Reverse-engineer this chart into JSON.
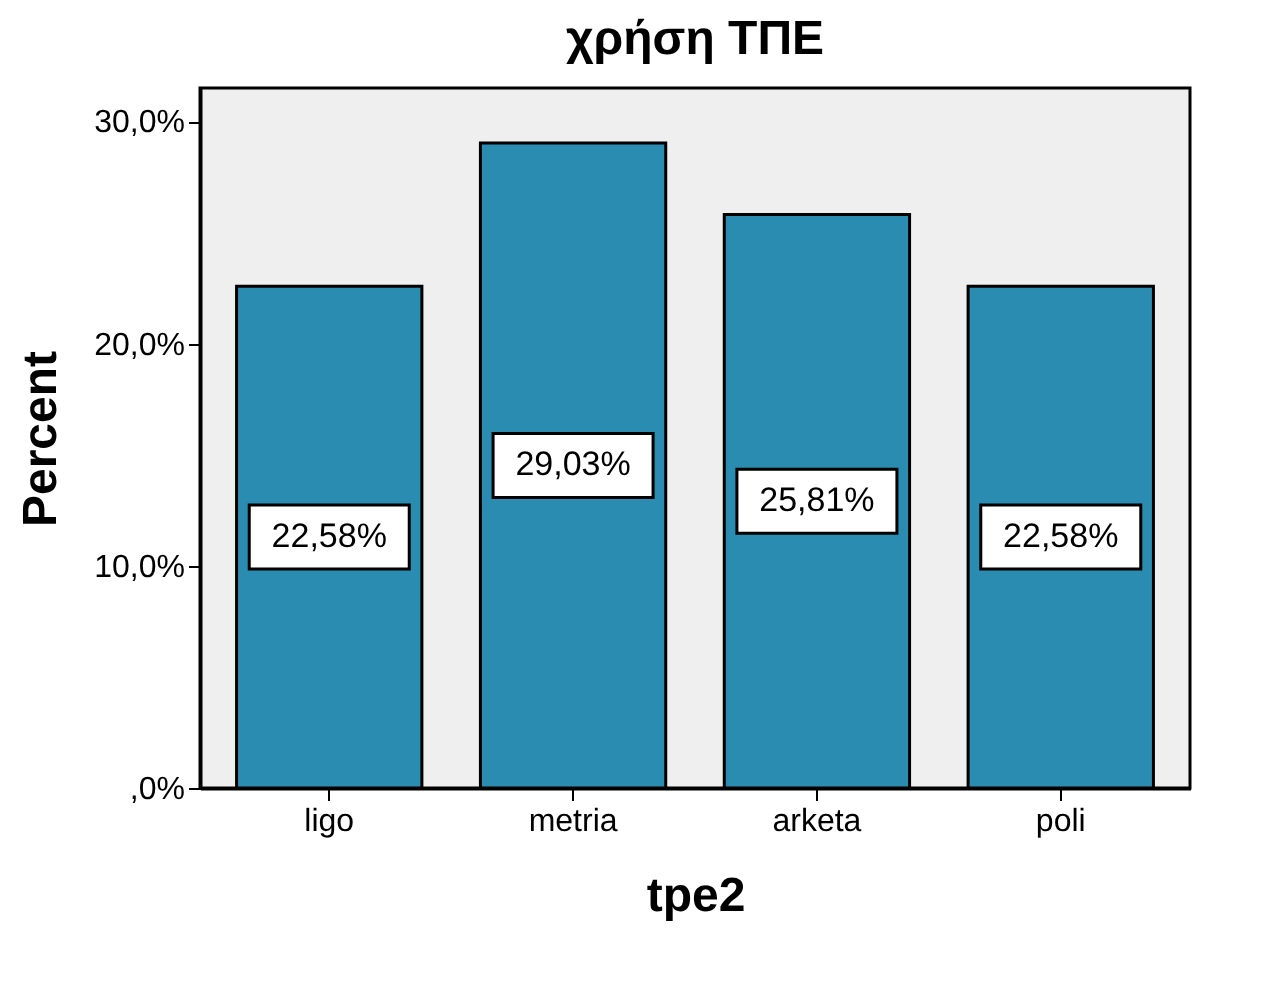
{
  "chart_data": {
    "type": "bar",
    "title": "χρήση ΤΠΕ",
    "xlabel": "tpe2",
    "ylabel": "Percent",
    "categories": [
      "ligo",
      "metria",
      "arketa",
      "poli"
    ],
    "values": [
      22.58,
      29.03,
      25.81,
      22.58
    ],
    "value_labels": [
      "22,58%",
      "29,03%",
      "25,81%",
      "22,58%"
    ],
    "color": "#2a8cb0",
    "ylim": [
      0,
      31.5
    ],
    "yticks": [
      {
        "value": 0,
        "label": ",0%"
      },
      {
        "value": 10,
        "label": "10,0%"
      },
      {
        "value": 20,
        "label": "20,0%"
      },
      {
        "value": 30,
        "label": "30,0%"
      }
    ],
    "grid": false
  }
}
